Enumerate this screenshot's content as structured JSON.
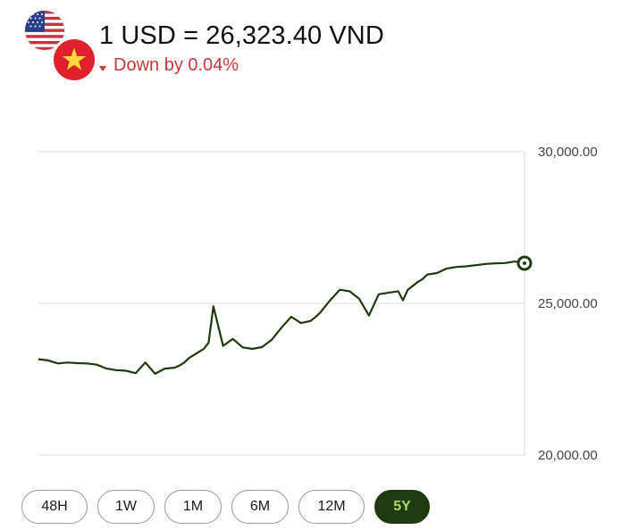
{
  "header": {
    "title": "1 USD = 26,323.40 VND",
    "change_text": "Down by 0.04%",
    "change_direction": "down",
    "change_color": "#c6373b"
  },
  "flags": {
    "base": "us-flag-icon",
    "quote": "vietnam-flag-icon"
  },
  "range_buttons": [
    {
      "label": "48H",
      "active": false
    },
    {
      "label": "1W",
      "active": false
    },
    {
      "label": "1M",
      "active": false
    },
    {
      "label": "6M",
      "active": false
    },
    {
      "label": "12M",
      "active": false
    },
    {
      "label": "5Y",
      "active": true
    }
  ],
  "colors": {
    "line": "#1f3a0e",
    "active_button_bg": "#1f3a0e",
    "active_button_text": "#a5dc6c"
  },
  "chart_data": {
    "type": "line",
    "title": "",
    "xlabel": "",
    "ylabel": "",
    "ylim": [
      20000,
      30000
    ],
    "yticks": [
      "30,000.00",
      "25,000.00",
      "20,000.00"
    ],
    "ytick_values": [
      30000,
      25000,
      20000
    ],
    "y_axis_position": "right",
    "grid": true,
    "x": [
      0,
      2,
      4,
      6,
      8,
      10,
      12,
      14,
      16,
      18,
      20,
      22,
      24,
      26,
      28,
      29,
      30,
      31,
      32,
      33,
      34,
      35,
      36,
      38,
      40,
      42,
      44,
      46,
      48,
      50,
      52,
      54,
      56,
      57,
      58,
      60,
      62,
      64,
      66,
      68,
      70,
      72,
      74,
      75,
      76,
      78,
      79,
      80,
      82,
      84,
      86,
      88,
      90,
      92,
      94,
      96,
      98,
      100
    ],
    "values": [
      23160,
      23120,
      23020,
      23050,
      23030,
      23020,
      22980,
      22850,
      22800,
      22780,
      22700,
      23050,
      22680,
      22850,
      22880,
      22950,
      23050,
      23200,
      23300,
      23400,
      23500,
      23700,
      24900,
      23600,
      23830,
      23550,
      23500,
      23560,
      23800,
      24200,
      24560,
      24350,
      24420,
      24550,
      24700,
      25100,
      25450,
      25400,
      25150,
      24600,
      25300,
      25350,
      25400,
      25100,
      25450,
      25700,
      25800,
      25950,
      26000,
      26150,
      26200,
      26220,
      26260,
      26300,
      26320,
      26330,
      26380,
      26323.4
    ],
    "last_value": 26323.4
  }
}
